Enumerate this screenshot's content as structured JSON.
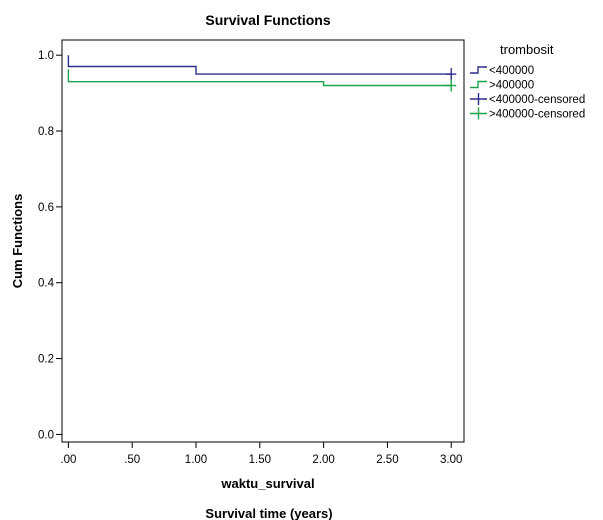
{
  "chart_data": {
    "type": "line",
    "title": "Survival Functions",
    "xlabel": "waktu_survival",
    "caption": "Survival time (years)",
    "ylabel": "Cum Functions",
    "xlim": [
      -0.05,
      3.1
    ],
    "ylim": [
      -0.02,
      1.04
    ],
    "x_ticks": [
      0,
      0.5,
      1,
      1.5,
      2,
      2.5,
      3
    ],
    "x_tick_labels": [
      ".00",
      ".50",
      "1.00",
      "1.50",
      "2.00",
      "2.50",
      "3.00"
    ],
    "y_ticks": [
      0,
      0.2,
      0.4,
      0.6,
      0.8,
      1.0
    ],
    "y_tick_labels": [
      "0.0",
      "0.2",
      "0.4",
      "0.6",
      "0.8",
      "1.0"
    ],
    "legend_title": "trombosit",
    "legend_position": "right",
    "series": [
      {
        "name": "<400000",
        "kind": "step",
        "color": "#2b2d8c",
        "x": [
          0,
          0,
          1,
          1,
          3
        ],
        "y": [
          1.0,
          0.97,
          0.97,
          0.95,
          0.95
        ]
      },
      {
        "name": ">400000",
        "kind": "step",
        "color": "#1aa34a",
        "x": [
          0,
          0,
          2,
          2,
          3
        ],
        "y": [
          0.963,
          0.93,
          0.93,
          0.92,
          0.92
        ]
      },
      {
        "name": "<400000-censored",
        "kind": "censored",
        "color": "#2b2d8c",
        "points": [
          {
            "x": 3,
            "y": 0.95
          }
        ]
      },
      {
        "name": ">400000-censored",
        "kind": "censored",
        "color": "#1aa34a",
        "points": [
          {
            "x": 3,
            "y": 0.92
          }
        ]
      }
    ]
  }
}
